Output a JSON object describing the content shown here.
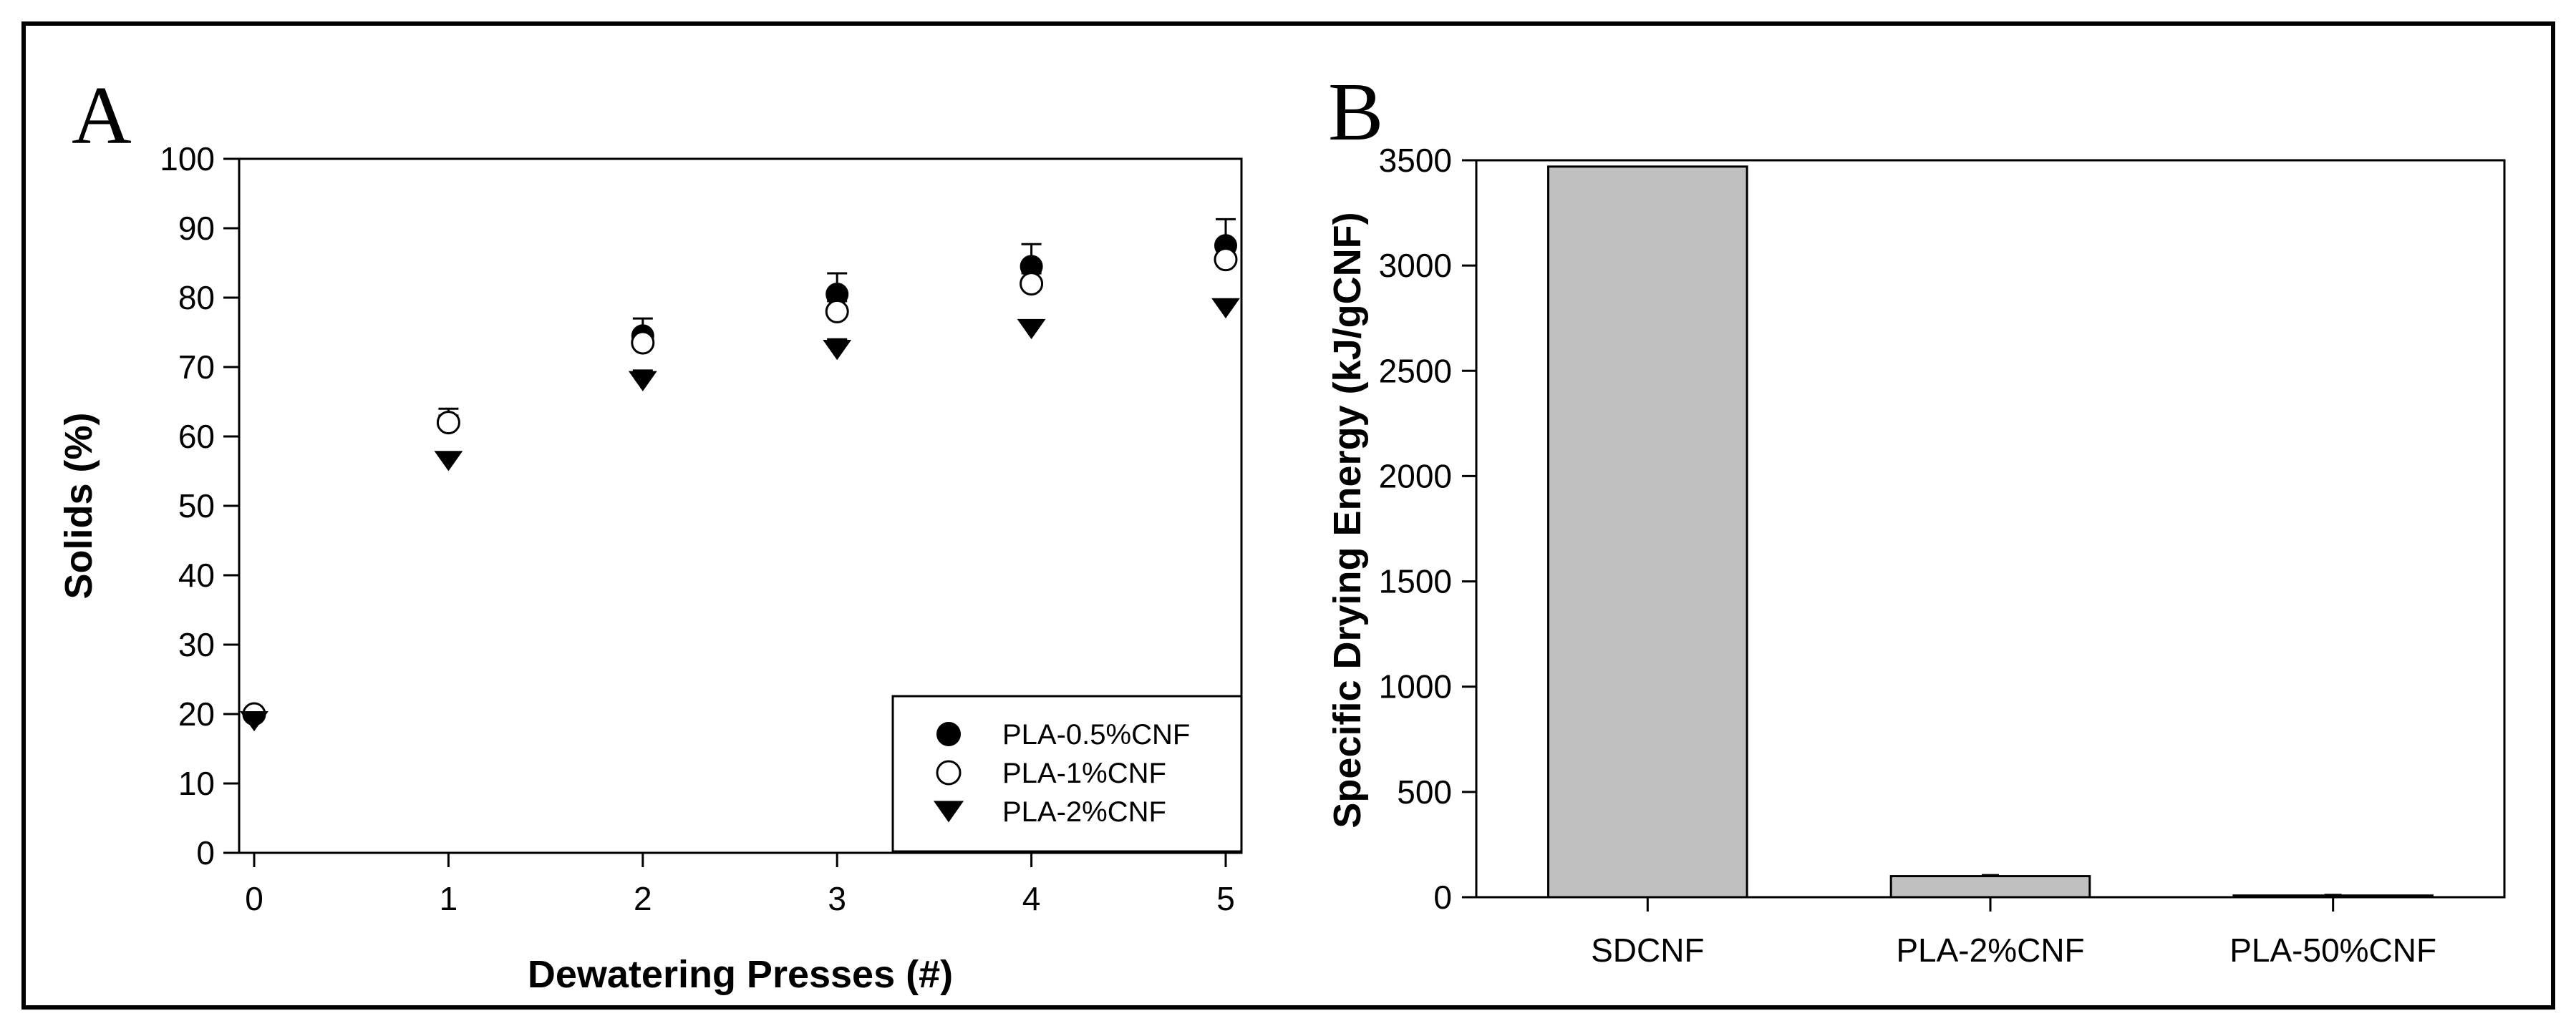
{
  "chart_data": [
    {
      "panel": "A",
      "type": "scatter",
      "xlabel": "Dewatering Presses (#)",
      "ylabel": "Solids (%)",
      "xlim": [
        0,
        5
      ],
      "ylim": [
        0,
        100
      ],
      "x_ticks": [
        "0",
        "1",
        "2",
        "3",
        "4",
        "5"
      ],
      "y_ticks": [
        "0",
        "10",
        "20",
        "30",
        "40",
        "50",
        "60",
        "70",
        "80",
        "90",
        "100"
      ],
      "legend_position": "bottom-right",
      "grid": false,
      "series": [
        {
          "name": "PLA-0.5%CNF",
          "marker": "filled-circle",
          "x": [
            0,
            1,
            2,
            3,
            4,
            5
          ],
          "y": [
            20,
            62,
            74.5,
            80.5,
            84.5,
            87.5
          ],
          "error": [
            0.5,
            1,
            2.5,
            3,
            3.2,
            3.8
          ]
        },
        {
          "name": "PLA-1%CNF",
          "marker": "open-circle",
          "x": [
            0,
            1,
            2,
            3,
            4,
            5
          ],
          "y": [
            20,
            62,
            73.5,
            78,
            82,
            85.5
          ],
          "error": [
            0.5,
            2,
            1.5,
            1.5,
            1.5,
            1.5
          ]
        },
        {
          "name": "PLA-2%CNF",
          "marker": "filled-triangle-down",
          "x": [
            0,
            1,
            2,
            3,
            4,
            5
          ],
          "y": [
            19,
            56.5,
            68,
            72.5,
            75.5,
            78.5
          ],
          "error": [
            0.5,
            1,
            1.5,
            1.5,
            1,
            1
          ]
        }
      ]
    },
    {
      "panel": "B",
      "type": "bar",
      "xlabel": "",
      "ylabel": "Specific Drying Energy (kJ/gCNF)",
      "categories": [
        "SDCNF",
        "PLA-2%CNF",
        "PLA-50%CNF"
      ],
      "values": [
        3470,
        100,
        8
      ],
      "error": [
        0,
        5,
        3
      ],
      "ylim": [
        0,
        3500
      ],
      "y_ticks": [
        "0",
        "500",
        "1000",
        "1500",
        "2000",
        "2500",
        "3000",
        "3500"
      ],
      "bar_color": "#c0c0c0",
      "grid": false
    }
  ]
}
